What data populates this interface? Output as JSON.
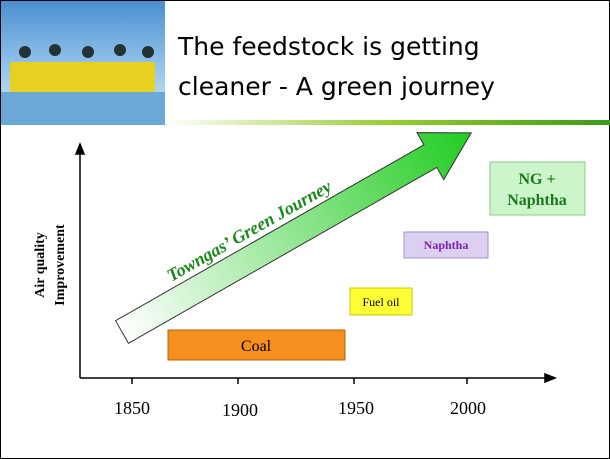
{
  "header": {
    "title_lines": [
      "The feedstock is getting",
      "cleaner - A green journey"
    ]
  },
  "diagram": {
    "y_axis_label": [
      "Air quality",
      "Improvement"
    ],
    "x_axis_labels": [
      "1850",
      "1900",
      "1950",
      "2000"
    ],
    "arrow_label": "Towngas’ Green Journey",
    "boxes": [
      "Coal",
      "Fuel oil",
      "Naphtha",
      [
        "NG +",
        "Naphtha"
      ]
    ]
  }
}
